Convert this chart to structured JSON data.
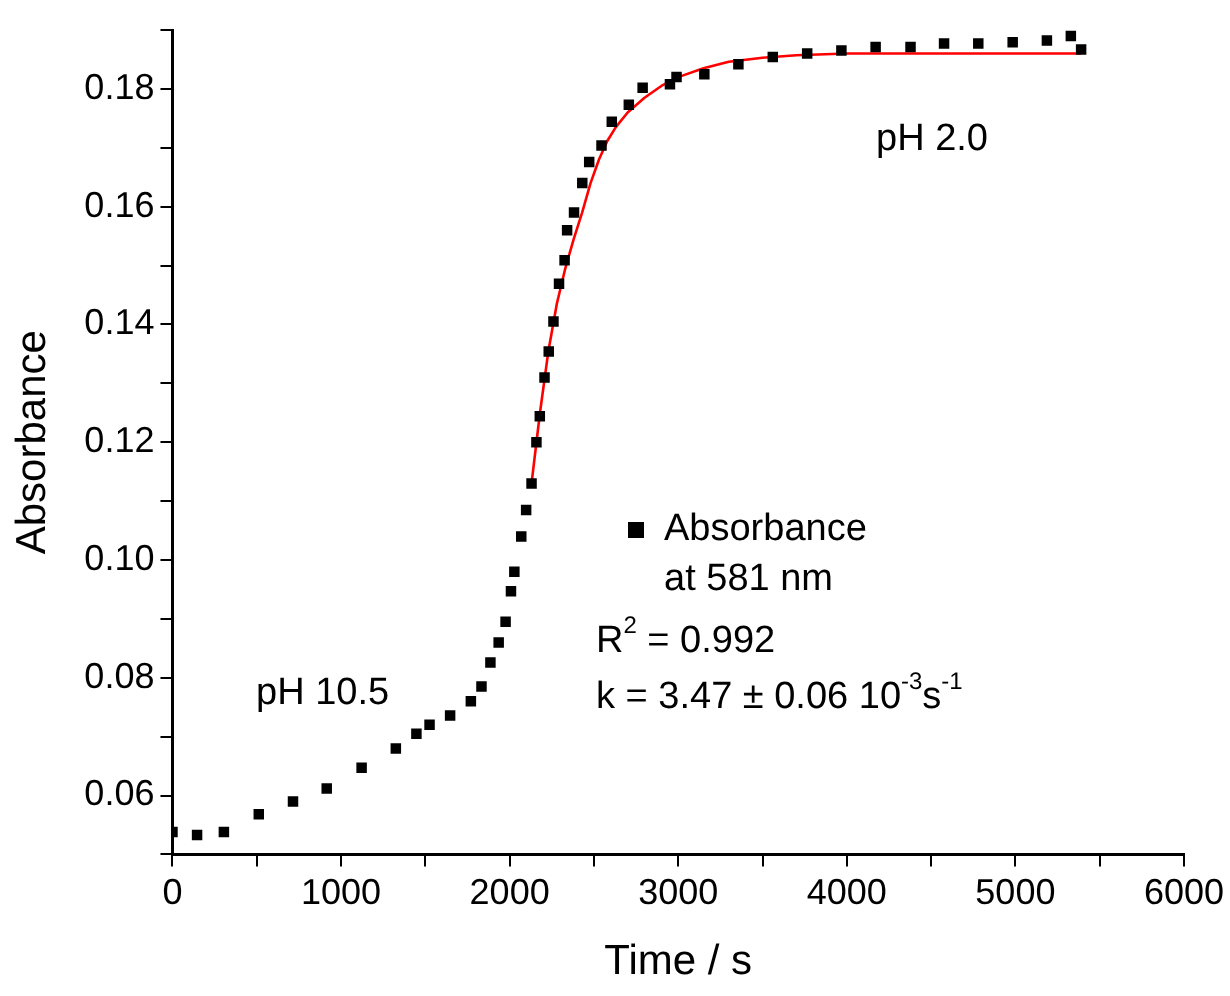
{
  "chart_data": {
    "type": "scatter",
    "xlabel": "Time / s",
    "ylabel": "Absorbance",
    "xlim": [
      0,
      6000
    ],
    "ylim": [
      0.05,
      0.19
    ],
    "xticks": [
      0,
      {
        "value": 500,
        "label": null
      },
      1000,
      {
        "value": 1500,
        "label": null
      },
      2000,
      {
        "value": 2500,
        "label": null
      },
      3000,
      {
        "value": 3500,
        "label": null
      },
      4000,
      {
        "value": 4500,
        "label": null
      },
      5000,
      {
        "value": 5500,
        "label": null
      },
      6000
    ],
    "yticks": [
      {
        "value": 0.05,
        "label": null
      },
      0.06,
      {
        "value": 0.07,
        "label": null
      },
      0.08,
      {
        "value": 0.09,
        "label": null
      },
      {
        "value": 0.1,
        "label": "0.10"
      },
      {
        "value": 0.11,
        "label": null
      },
      0.12,
      {
        "value": 0.13,
        "label": null
      },
      0.14,
      {
        "value": 0.15,
        "label": null
      },
      0.16,
      {
        "value": 0.17,
        "label": null
      },
      0.18,
      {
        "value": 0.19,
        "label": null
      }
    ],
    "grid": false,
    "legend": "right",
    "marker": "square",
    "annotations": [
      "pH 2.0",
      "pH 10.5",
      "R$^{2}$ = 0.992",
      "k = 3.47 ± 0.06 10$^{-3}$s$^{-1}$"
    ],
    "series": [
      {
        "name": "Absorbance at 581 nm",
        "color": "#000000",
        "x": [
          0,
          146,
          305,
          512,
          715,
          915,
          1122,
          1325,
          1447,
          1525,
          1647,
          1770,
          1833,
          1886,
          1935,
          1976,
          2008,
          2028,
          2069,
          2098,
          2130,
          2159,
          2179,
          2207,
          2232,
          2260,
          2293,
          2326,
          2341,
          2382,
          2431,
          2472,
          2545,
          2606,
          2707,
          2789,
          2951,
          2990,
          3155,
          3357,
          3561,
          3765,
          3968,
          4171,
          4378,
          4577,
          4780,
          4984,
          5187,
          5329,
          5390
        ],
        "values": [
          0.0538,
          0.0533,
          0.0538,
          0.0568,
          0.059,
          0.0612,
          0.0647,
          0.068,
          0.0705,
          0.072,
          0.0736,
          0.076,
          0.0785,
          0.0826,
          0.086,
          0.0895,
          0.0947,
          0.098,
          0.104,
          0.1085,
          0.113,
          0.12,
          0.1244,
          0.131,
          0.1354,
          0.1405,
          0.1469,
          0.1509,
          0.156,
          0.159,
          0.164,
          0.1676,
          0.1704,
          0.1744,
          0.1773,
          0.1802,
          0.1808,
          0.182,
          0.1825,
          0.1842,
          0.1854,
          0.186,
          0.1865,
          0.1871,
          0.1871,
          0.1877,
          0.1877,
          0.1879,
          0.1882,
          0.189,
          0.1867
        ]
      },
      {
        "type": "line",
        "marker": "none",
        "color": "#ff0000",
        "x": [
          2130,
          2180,
          2230,
          2280,
          2330,
          2380,
          2430,
          2480,
          2530,
          2580,
          2630,
          2700,
          2800,
          2900,
          3000,
          3150,
          3300,
          3500,
          3700,
          4000,
          4500,
          5390
        ],
        "values": [
          0.113,
          0.125,
          0.1355,
          0.1435,
          0.1495,
          0.1545,
          0.159,
          0.164,
          0.168,
          0.1712,
          0.1735,
          0.176,
          0.1785,
          0.1805,
          0.182,
          0.1835,
          0.1846,
          0.1853,
          0.1857,
          0.186,
          0.186,
          0.186
        ]
      }
    ]
  }
}
